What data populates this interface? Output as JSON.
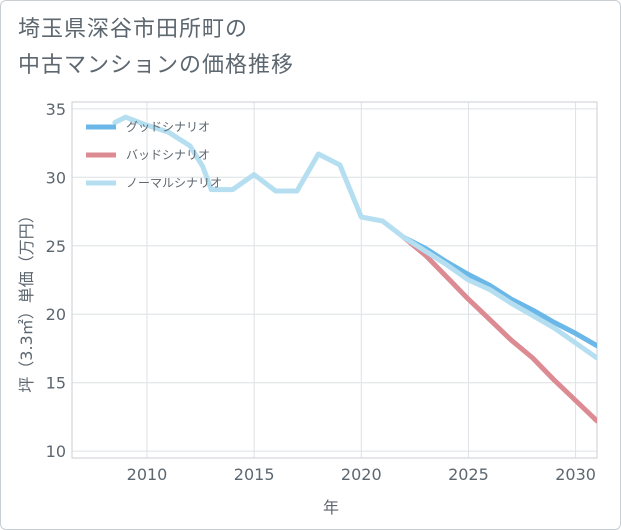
{
  "header": {
    "title_line1": "埼玉県深谷市田所町の",
    "title_line2": "中古マンションの価格推移"
  },
  "chart_data": {
    "type": "line",
    "title": "埼玉県深谷市田所町の中古マンションの価格推移",
    "xlabel": "年",
    "ylabel": "坪（3.3㎡）単価（万円）",
    "xlim": [
      2006.5,
      2031
    ],
    "ylim": [
      9.5,
      35.5
    ],
    "xticks": [
      2010,
      2015,
      2020,
      2025,
      2030
    ],
    "yticks": [
      10,
      15,
      20,
      25,
      30,
      35
    ],
    "grid": true,
    "legend_position": "top-left",
    "series": [
      {
        "name": "グッドシナリオ",
        "color": "#6bb8e8",
        "x": [
          2022,
          2023,
          2024,
          2025,
          2026,
          2027,
          2028,
          2029,
          2030,
          2031
        ],
        "y": [
          25.6,
          24.8,
          23.8,
          22.9,
          22.1,
          21.1,
          20.3,
          19.4,
          18.6,
          17.7
        ]
      },
      {
        "name": "バッドシナリオ",
        "color": "#dc8b93",
        "x": [
          2022,
          2023,
          2024,
          2025,
          2026,
          2027,
          2028,
          2029,
          2030,
          2031
        ],
        "y": [
          25.6,
          24.3,
          22.7,
          21.1,
          19.6,
          18.1,
          16.8,
          15.2,
          13.7,
          12.2
        ]
      },
      {
        "name": "ノーマルシナリオ",
        "color": "#b5dff0",
        "x": [
          2008.5,
          2009,
          2010,
          2011,
          2012,
          2012.6,
          2013,
          2014,
          2015,
          2016,
          2017,
          2018,
          2019,
          2020,
          2021,
          2022,
          2023,
          2024,
          2025,
          2026,
          2027,
          2028,
          2029,
          2030,
          2031
        ],
        "y": [
          34.0,
          34.4,
          33.8,
          33.3,
          32.3,
          30.8,
          29.1,
          29.1,
          30.2,
          29.0,
          29.0,
          31.7,
          30.9,
          27.1,
          26.8,
          25.6,
          24.6,
          23.6,
          22.5,
          21.8,
          20.8,
          19.9,
          19.0,
          17.9,
          16.8
        ]
      }
    ]
  }
}
